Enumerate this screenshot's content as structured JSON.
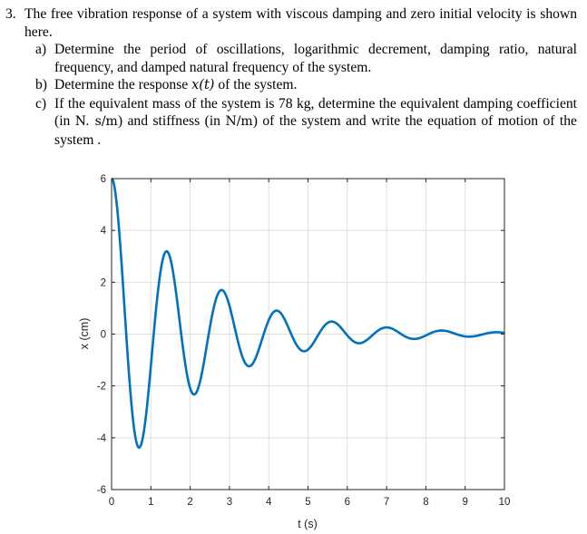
{
  "question": {
    "number": "3.",
    "intro": "The free vibration response of a system with viscous damping and zero initial velocity is shown here.",
    "parts": [
      {
        "label": "a)",
        "text": "Determine the period of oscillations, logarithmic decrement, damping ratio, natural frequency, and damped natural frequency of the system."
      },
      {
        "label": "b)",
        "text_before": "Determine the response ",
        "math": "x(t)",
        "text_after": " of the system."
      },
      {
        "label": "c)",
        "text_1": "If the equivalent mass of the system is 78 kg, determine the equivalent damping coefficient (in ",
        "unit_1": "N. s/m",
        "text_2": ") and stiffness (in ",
        "unit_2": "N/m",
        "text_3": ") of the system and write the equation of motion of the system ."
      }
    ]
  },
  "chart_data": {
    "type": "line",
    "title": "",
    "xlabel": "t (s)",
    "ylabel": "x (cm)",
    "xlim": [
      0,
      10
    ],
    "ylim": [
      -6,
      6
    ],
    "xticks": [
      "0",
      "1",
      "2",
      "3",
      "4",
      "5",
      "6",
      "7",
      "8",
      "9",
      "10"
    ],
    "yticks": [
      "6",
      "4",
      "2",
      "0",
      "-2",
      "-4",
      "-6"
    ],
    "grid": true,
    "line_color": "#0072BD",
    "model": {
      "x0": 6,
      "period_s": 1.4,
      "log_decrement": 0.63,
      "zero_initial_velocity": true
    },
    "peaks": [
      {
        "t": 0.0,
        "x": 6.0
      },
      {
        "t": 1.4,
        "x": 3.2
      },
      {
        "t": 2.8,
        "x": 1.7
      },
      {
        "t": 4.2,
        "x": 0.9
      },
      {
        "t": 5.6,
        "x": 0.5
      },
      {
        "t": 7.0,
        "x": 0.25
      },
      {
        "t": 8.4,
        "x": 0.14
      },
      {
        "t": 9.8,
        "x": 0.07
      }
    ],
    "troughs": [
      {
        "t": 0.7,
        "x": -4.4
      },
      {
        "t": 2.1,
        "x": -2.3
      },
      {
        "t": 3.5,
        "x": -1.2
      },
      {
        "t": 4.9,
        "x": -0.65
      },
      {
        "t": 6.3,
        "x": -0.35
      },
      {
        "t": 7.7,
        "x": -0.18
      },
      {
        "t": 9.1,
        "x": -0.1
      }
    ]
  }
}
